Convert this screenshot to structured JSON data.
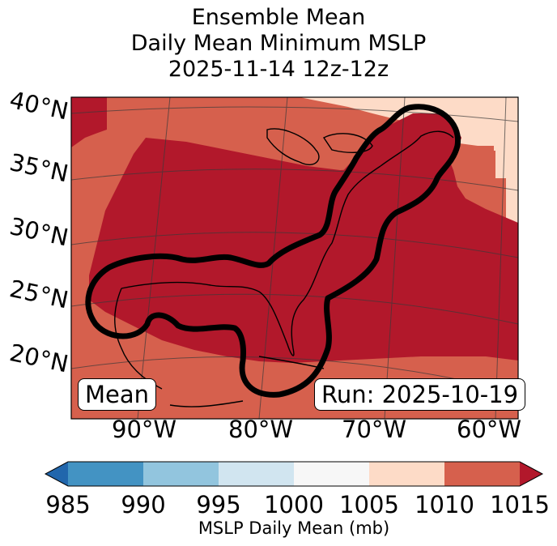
{
  "title": {
    "line1": "Ensemble Mean",
    "line2": "Daily Mean Minimum MSLP",
    "line3": "2025-11-14 12z-12z"
  },
  "map": {
    "lat_labels": [
      "40°N",
      "35°N",
      "30°N",
      "25°N",
      "20°N"
    ],
    "lon_labels": [
      "90°W",
      "80°W",
      "70°W",
      "60°W"
    ],
    "field_colors": {
      "lt_1015_outer": "#d6604d",
      "ge_1015": "#b2182b",
      "band_1005_1010": "#fddbc7",
      "contour": "#000000"
    }
  },
  "labels": {
    "mean_box": "Mean",
    "run_box": "Run: 2025-10-19"
  },
  "colorbar": {
    "ticks": [
      "985",
      "990",
      "995",
      "1000",
      "1005",
      "1010",
      "1015"
    ],
    "label": "MSLP Daily Mean (mb)",
    "colors": [
      "#2166ac",
      "#4393c3",
      "#92c5de",
      "#d1e5f0",
      "#f7f7f7",
      "#fddbc7",
      "#d6604d",
      "#b2182b"
    ]
  }
}
